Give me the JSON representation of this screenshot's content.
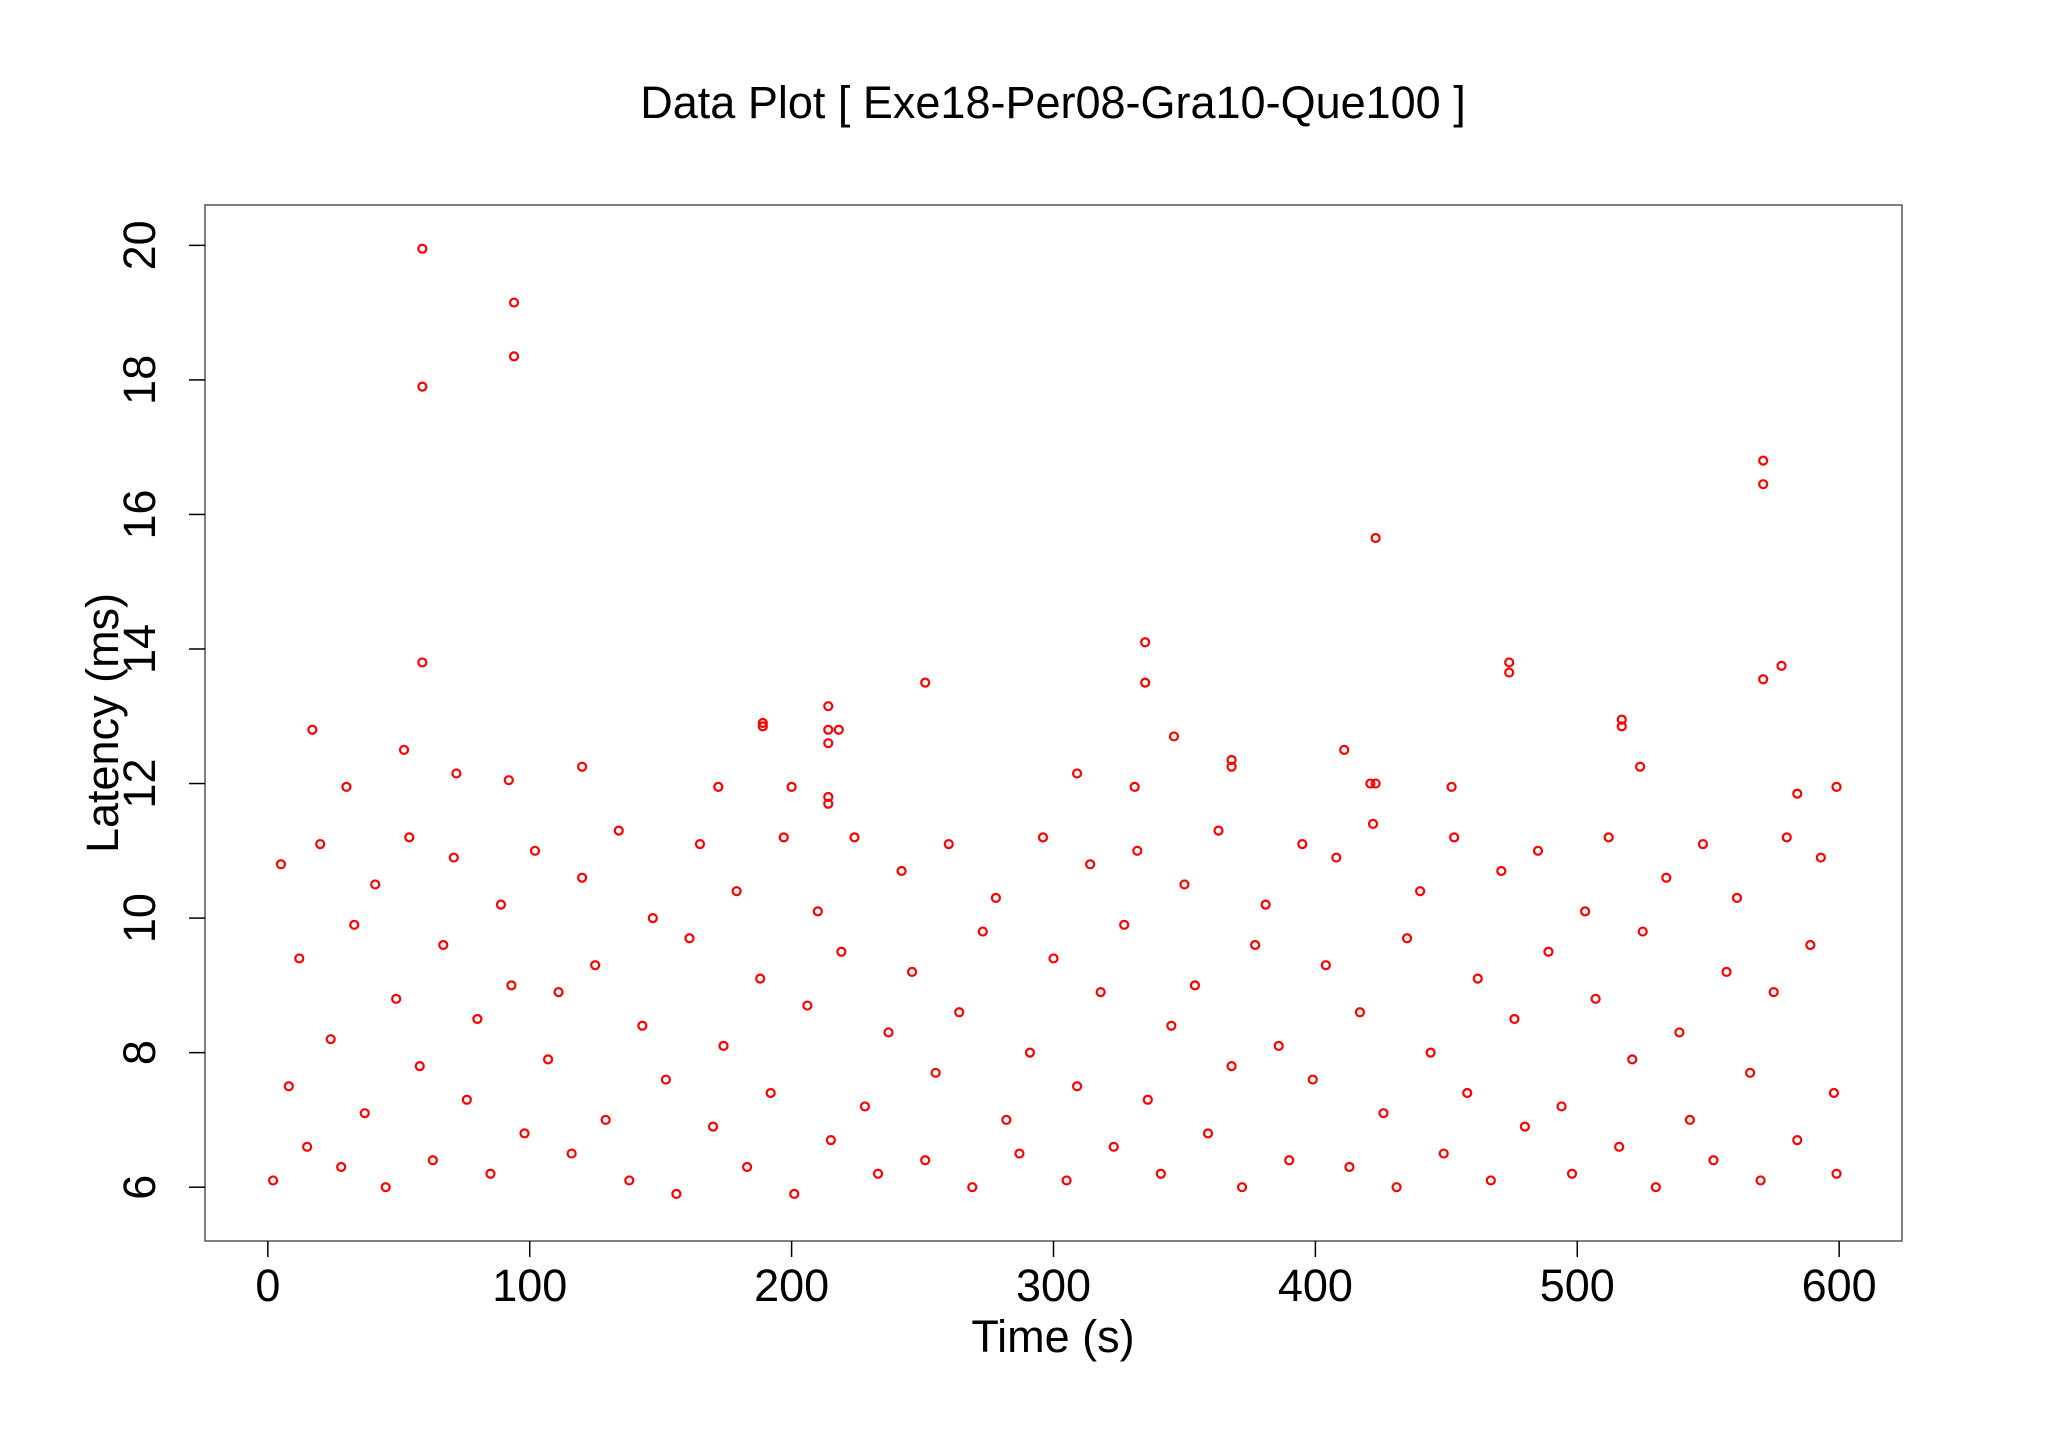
{
  "chart_data": {
    "type": "scatter",
    "title": "Data Plot [ Exe18-Per08-Gra10-Que100 ]",
    "x_label": "Time (s)",
    "y_label": "Latency (ms)",
    "color": "#ff0000",
    "xlim": [
      -24,
      624
    ],
    "ylim": [
      5.2,
      20.6
    ],
    "xticks": [
      0,
      100,
      200,
      300,
      400,
      500,
      600
    ],
    "yticks": [
      6,
      8,
      10,
      12,
      14,
      16,
      18,
      20
    ],
    "x": [
      59,
      94,
      94,
      59,
      59,
      17,
      52,
      30,
      72,
      92,
      120,
      172,
      189,
      189,
      214,
      214,
      214,
      218,
      214,
      214,
      200,
      251,
      309,
      331,
      335,
      335,
      346,
      368,
      368,
      411,
      423,
      423,
      421,
      452,
      474,
      474,
      517,
      517,
      524,
      571,
      571,
      571,
      578,
      584,
      599,
      2,
      5,
      8,
      12,
      15,
      20,
      24,
      28,
      33,
      37,
      41,
      45,
      49,
      54,
      58,
      63,
      67,
      71,
      76,
      80,
      85,
      89,
      93,
      98,
      102,
      107,
      111,
      116,
      120,
      125,
      129,
      134,
      138,
      143,
      147,
      152,
      156,
      161,
      165,
      170,
      174,
      179,
      183,
      188,
      192,
      197,
      201,
      206,
      210,
      215,
      219,
      224,
      228,
      233,
      237,
      242,
      246,
      251,
      255,
      260,
      264,
      269,
      273,
      278,
      282,
      287,
      291,
      296,
      300,
      305,
      309,
      314,
      318,
      323,
      327,
      332,
      336,
      341,
      345,
      350,
      354,
      359,
      363,
      368,
      372,
      377,
      381,
      386,
      390,
      395,
      399,
      404,
      408,
      413,
      417,
      422,
      426,
      431,
      435,
      440,
      444,
      449,
      453,
      458,
      462,
      467,
      471,
      476,
      480,
      485,
      489,
      494,
      498,
      503,
      507,
      512,
      516,
      521,
      525,
      530,
      534,
      539,
      543,
      548,
      552,
      557,
      561,
      566,
      570,
      575,
      580,
      584,
      589,
      593,
      598,
      599
    ],
    "values": [
      19.95,
      19.15,
      18.35,
      17.9,
      13.8,
      12.8,
      12.5,
      11.95,
      12.15,
      12.05,
      12.25,
      11.95,
      12.9,
      12.85,
      13.15,
      12.8,
      12.6,
      12.8,
      11.8,
      11.7,
      11.95,
      13.5,
      12.15,
      11.95,
      14.1,
      13.5,
      12.7,
      12.35,
      12.25,
      12.5,
      15.65,
      12,
      12,
      11.95,
      13.8,
      13.65,
      12.95,
      12.85,
      12.25,
      16.8,
      16.45,
      13.55,
      13.75,
      11.85,
      11.95,
      6.1,
      10.8,
      7.5,
      9.4,
      6.6,
      11.1,
      8.2,
      6.3,
      9.9,
      7.1,
      10.5,
      6.0,
      8.8,
      11.2,
      7.8,
      6.4,
      9.6,
      10.9,
      7.3,
      8.5,
      6.2,
      10.2,
      9.0,
      6.8,
      11.0,
      7.9,
      8.9,
      6.5,
      10.6,
      9.3,
      7.0,
      11.3,
      6.1,
      8.4,
      10.0,
      7.6,
      5.9,
      9.7,
      11.1,
      6.9,
      8.1,
      10.4,
      6.3,
      9.1,
      7.4,
      11.2,
      5.9,
      8.7,
      10.1,
      6.7,
      9.5,
      11.2,
      7.2,
      6.2,
      8.3,
      10.7,
      9.2,
      6.4,
      7.7,
      11.1,
      8.6,
      6.0,
      9.8,
      10.3,
      7.0,
      6.5,
      8.0,
      11.2,
      9.4,
      6.1,
      7.5,
      10.8,
      8.9,
      6.6,
      9.9,
      11.0,
      7.3,
      6.2,
      8.4,
      10.5,
      9.0,
      6.8,
      11.3,
      7.8,
      6.0,
      9.6,
      10.2,
      8.1,
      6.4,
      11.1,
      7.6,
      9.3,
      10.9,
      6.3,
      8.6,
      11.4,
      7.1,
      6.0,
      9.7,
      10.4,
      8.0,
      6.5,
      11.2,
      7.4,
      9.1,
      6.1,
      10.7,
      8.5,
      6.9,
      11.0,
      9.5,
      7.2,
      6.2,
      10.1,
      8.8,
      11.2,
      6.6,
      7.9,
      9.8,
      6.0,
      10.6,
      8.3,
      7.0,
      11.1,
      6.4,
      9.2,
      10.3,
      7.7,
      6.1,
      8.9,
      11.2,
      6.7,
      9.6,
      10.9,
      7.4,
      6.2
    ]
  }
}
